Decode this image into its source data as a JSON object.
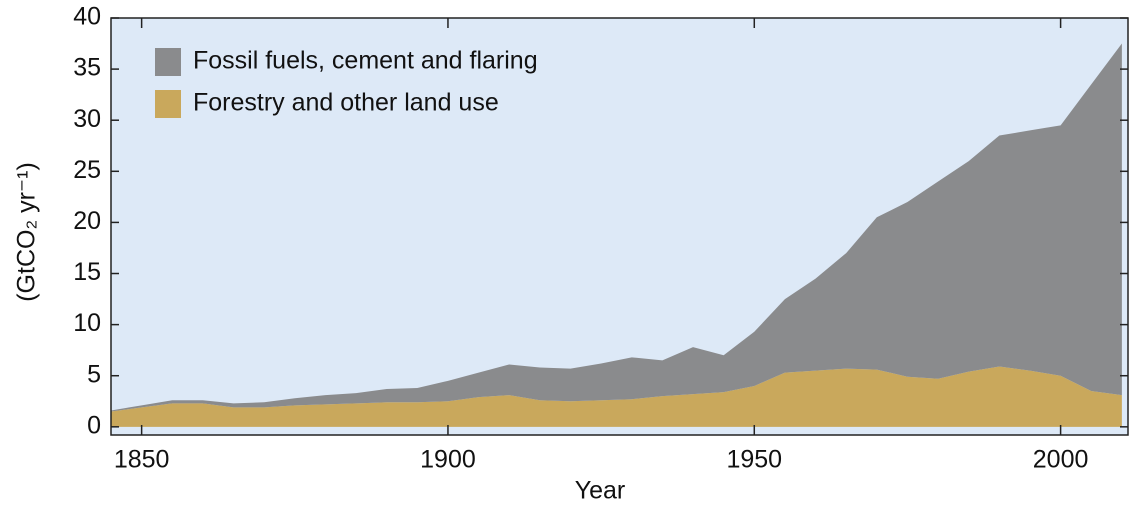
{
  "chart_data": {
    "type": "stacked-area",
    "x_label": "Year",
    "y_label": "(GtCO₂ yr⁻¹)",
    "x": [
      1845,
      1850,
      1855,
      1860,
      1865,
      1870,
      1875,
      1880,
      1885,
      1890,
      1895,
      1900,
      1905,
      1910,
      1915,
      1920,
      1925,
      1930,
      1935,
      1940,
      1945,
      1950,
      1955,
      1960,
      1965,
      1970,
      1975,
      1980,
      1985,
      1990,
      1995,
      2000,
      2005,
      2010
    ],
    "series": [
      {
        "name": "Fossil fuels, cement and flaring",
        "color": "#8a8b8d",
        "values": [
          0.1,
          0.2,
          0.3,
          0.3,
          0.4,
          0.5,
          0.7,
          0.9,
          1.0,
          1.3,
          1.4,
          2.0,
          2.4,
          3.0,
          3.2,
          3.2,
          3.6,
          4.1,
          3.5,
          4.6,
          3.6,
          5.3,
          7.2,
          9.0,
          11.3,
          14.9,
          17.1,
          19.3,
          20.6,
          22.6,
          23.5,
          24.5,
          30.0,
          34.4
        ]
      },
      {
        "name": "Forestry and other land use",
        "color": "#c9a85c",
        "values": [
          1.5,
          1.9,
          2.3,
          2.3,
          1.9,
          1.9,
          2.1,
          2.2,
          2.3,
          2.4,
          2.4,
          2.5,
          2.9,
          3.1,
          2.6,
          2.5,
          2.6,
          2.7,
          3.0,
          3.2,
          3.4,
          4.0,
          5.3,
          5.5,
          5.7,
          5.6,
          4.9,
          4.7,
          5.4,
          5.9,
          5.5,
          5.0,
          3.5,
          3.1
        ]
      }
    ],
    "stack_order": [
      1,
      0
    ],
    "xlim": [
      1845,
      2011
    ],
    "xticks": [
      1850,
      1900,
      1950,
      2000
    ],
    "ylim": [
      -0.8,
      40
    ],
    "yticks": [
      0,
      5,
      10,
      15,
      20,
      25,
      30,
      35,
      40
    ],
    "background": "#dde9f7",
    "legend": "upper left"
  }
}
